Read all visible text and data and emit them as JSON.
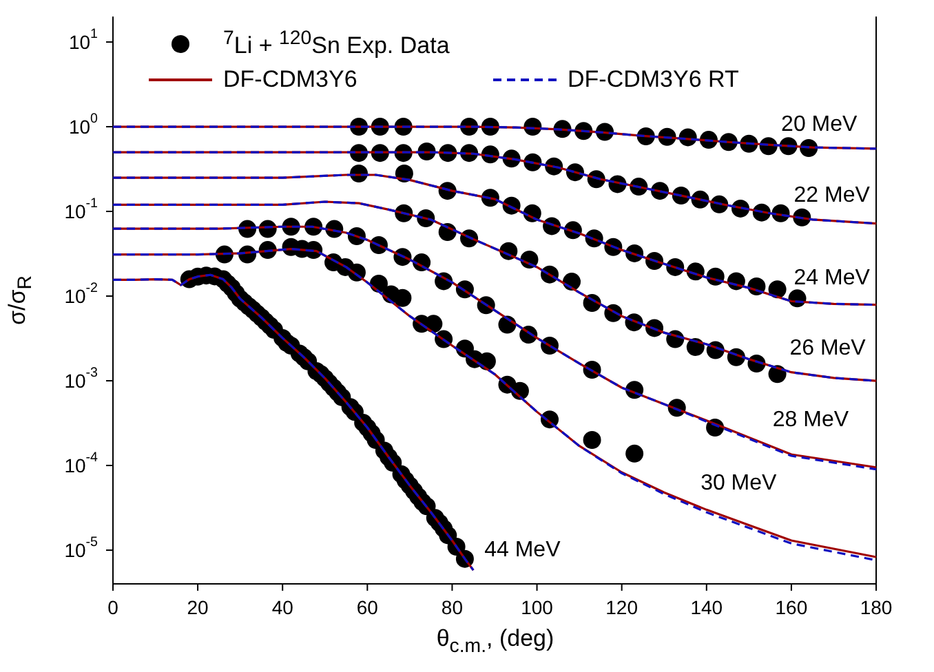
{
  "chart_data": {
    "type": "line",
    "xlabel": "θ$_{c.m.}$, (deg)",
    "ylabel": "σ/σ$_{R}$",
    "xlim": [
      0,
      180
    ],
    "xticks": [
      0,
      20,
      40,
      60,
      80,
      100,
      120,
      140,
      160,
      180
    ],
    "ylim": [
      4e-06,
      20
    ],
    "yticks": [
      {
        "value": 1e-05,
        "label": "10$^{-5}$"
      },
      {
        "value": 0.0001,
        "label": "10$^{-4}$"
      },
      {
        "value": 0.001,
        "label": "10$^{-3}$"
      },
      {
        "value": 0.01,
        "label": "10$^{-2}$"
      },
      {
        "value": 0.1,
        "label": "10$^{-1}$"
      },
      {
        "value": 1,
        "label": "10$^{0}$"
      },
      {
        "value": 10,
        "label": "10$^{1}$"
      }
    ],
    "log": "y",
    "grid": false,
    "legend": "top",
    "series": [
      {
        "name": "$^{7}$Li + $^{120}$Sn Exp. Data",
        "type": "scatter",
        "color": "#000000",
        "marker": "circle",
        "x": [
          58,
          63,
          68.5,
          84,
          89,
          99,
          106,
          111,
          116,
          125.7,
          130.7,
          135.6,
          140.5,
          145.2,
          150,
          154.6,
          159.3,
          164.1,
          58,
          63,
          68.5,
          74,
          79,
          84,
          89,
          94,
          99,
          104,
          109,
          114,
          119,
          124,
          129,
          134,
          138.5,
          143,
          148,
          153,
          157.5,
          162.5,
          58,
          68.7,
          78.9,
          89,
          94,
          98.9,
          103.5,
          108.5,
          113.5,
          118,
          123,
          127.7,
          132.6,
          137.4,
          142.1,
          147,
          151.8,
          156.7,
          161.4,
          68.6,
          73.8,
          78.9,
          84,
          93.3,
          98.2,
          103,
          108.2,
          113,
          118,
          122.9,
          127.7,
          132.6,
          137.4,
          142.1,
          147,
          151.8,
          156.7,
          31.7,
          36.5,
          42,
          47.3,
          52.2,
          57.5,
          62.7,
          68.3,
          72.8,
          78,
          83,
          88,
          93,
          98,
          103,
          113,
          123,
          133,
          142,
          26.3,
          31.7,
          36.5,
          42,
          44.6,
          47.3,
          52,
          54.8,
          57.5,
          62.7,
          65.6,
          68.3,
          72.8,
          75.6,
          78,
          83,
          85.3,
          88.2,
          93,
          96,
          103,
          113,
          123,
          18,
          20,
          22,
          24,
          26,
          27,
          28,
          29,
          30,
          31,
          32,
          33,
          34,
          35,
          36,
          37,
          38,
          40,
          41,
          42,
          44,
          45,
          46,
          48,
          49,
          50,
          51,
          52,
          53,
          54,
          56,
          57,
          59,
          60,
          61,
          62,
          64,
          65,
          66,
          68,
          69,
          70,
          71,
          72,
          73,
          74,
          76,
          77,
          78,
          79,
          81,
          83
        ],
        "values": [
          1,
          1,
          1,
          1,
          1,
          1,
          0.94,
          0.89,
          0.87,
          0.77,
          0.76,
          0.75,
          0.7,
          0.66,
          0.63,
          0.59,
          0.59,
          0.56,
          0.49,
          0.49,
          0.49,
          0.51,
          0.49,
          0.49,
          0.47,
          0.42,
          0.38,
          0.34,
          0.29,
          0.24,
          0.21,
          0.196,
          0.175,
          0.154,
          0.138,
          0.121,
          0.108,
          0.097,
          0.095,
          0.085,
          0.28,
          0.28,
          0.175,
          0.145,
          0.117,
          0.095,
          0.067,
          0.06,
          0.048,
          0.038,
          0.032,
          0.026,
          0.022,
          0.0195,
          0.017,
          0.015,
          0.013,
          0.012,
          0.0094,
          0.095,
          0.083,
          0.057,
          0.048,
          0.034,
          0.027,
          0.018,
          0.0148,
          0.0083,
          0.0063,
          0.0049,
          0.0042,
          0.0031,
          0.0025,
          0.0023,
          0.0019,
          0.0016,
          0.0012,
          0.062,
          0.062,
          0.066,
          0.066,
          0.062,
          0.051,
          0.04,
          0.029,
          0.025,
          0.015,
          0.012,
          0.0078,
          0.0046,
          0.0035,
          0.0026,
          0.00135,
          0.00078,
          0.00048,
          0.00028,
          0.031,
          0.031,
          0.035,
          0.038,
          0.036,
          0.035,
          0.025,
          0.022,
          0.019,
          0.014,
          0.0105,
          0.0095,
          0.0047,
          0.0047,
          0.0031,
          0.0024,
          0.0018,
          0.0017,
          0.0009,
          0.00076,
          0.00035,
          0.0002,
          0.000138,
          0.0158,
          0.017,
          0.0175,
          0.0171,
          0.0158,
          0.0141,
          0.0126,
          0.0108,
          0.0093,
          0.0084,
          0.0076,
          0.0069,
          0.0062,
          0.0056,
          0.005,
          0.0045,
          0.004,
          0.0032,
          0.0028,
          0.0026,
          0.0021,
          0.0019,
          0.0017,
          0.0013,
          0.0012,
          0.00107,
          0.00094,
          0.00083,
          0.00073,
          0.00064,
          0.00049,
          0.00043,
          0.00032,
          0.00028,
          0.00024,
          0.0002,
          0.00015,
          0.000126,
          0.000108,
          7.9e-05,
          6.7e-05,
          5.8e-05,
          5e-05,
          4.3e-05,
          3.7e-05,
          3.3e-05,
          2.4e-05,
          2.1e-05,
          1.8e-05,
          1.5e-05,
          1.1e-05,
          7.9e-06
        ]
      },
      {
        "name": "DF-CDM3Y6",
        "color": "#a00000",
        "line_style": "solid",
        "marker": "none",
        "x": [
          0,
          60,
          70,
          85,
          95,
          105,
          115,
          125,
          135,
          145,
          155,
          165,
          180
        ],
        "values": [
          1,
          1,
          1,
          1,
          0.98,
          0.93,
          0.86,
          0.78,
          0.72,
          0.66,
          0.61,
          0.57,
          0.55
        ]
      },
      {
        "color": "#a00000",
        "line_style": "solid",
        "marker": "none",
        "x": [
          0,
          60,
          75,
          85,
          95,
          105,
          115,
          125,
          135,
          145,
          155,
          165,
          180
        ],
        "values": [
          0.5,
          0.5,
          0.5,
          0.48,
          0.41,
          0.33,
          0.24,
          0.19,
          0.15,
          0.118,
          0.095,
          0.08,
          0.072
        ]
      },
      {
        "color": "#a00000",
        "line_style": "solid",
        "marker": "none",
        "x": [
          0,
          40,
          55,
          62,
          70,
          80,
          90,
          100,
          110,
          120,
          130,
          140,
          150,
          160,
          170,
          180
        ],
        "values": [
          0.25,
          0.25,
          0.27,
          0.27,
          0.235,
          0.175,
          0.14,
          0.08,
          0.055,
          0.035,
          0.024,
          0.0166,
          0.0125,
          0.0087,
          0.0081,
          0.0079
        ]
      },
      {
        "color": "#a00000",
        "line_style": "solid",
        "marker": "none",
        "x": [
          0,
          40,
          50,
          58,
          65,
          75,
          85,
          100,
          110,
          120,
          130,
          140,
          150,
          160,
          170,
          180
        ],
        "values": [
          0.12,
          0.12,
          0.13,
          0.125,
          0.105,
          0.08,
          0.047,
          0.022,
          0.011,
          0.0058,
          0.0037,
          0.0027,
          0.0018,
          0.00126,
          0.00108,
          0.001
        ]
      },
      {
        "color": "#a00000",
        "line_style": "solid",
        "marker": "none",
        "x": [
          0,
          25,
          40,
          47,
          55,
          60,
          70,
          80,
          90,
          100,
          110,
          120,
          130,
          140,
          160,
          180
        ],
        "values": [
          0.0625,
          0.0625,
          0.066,
          0.066,
          0.056,
          0.046,
          0.027,
          0.0145,
          0.0068,
          0.0032,
          0.0016,
          0.00083,
          0.00053,
          0.00034,
          0.000135,
          9.5e-05
        ]
      },
      {
        "color": "#a00000",
        "line_style": "solid",
        "marker": "none",
        "x": [
          0,
          20,
          30,
          42,
          48,
          55,
          60,
          70,
          80,
          90,
          100,
          110,
          120,
          130,
          140,
          160,
          180
        ],
        "values": [
          0.031,
          0.031,
          0.032,
          0.036,
          0.034,
          0.022,
          0.0145,
          0.0058,
          0.0026,
          0.0012,
          0.00043,
          0.00017,
          8.3e-05,
          4.8e-05,
          3e-05,
          1.3e-05,
          8.3e-06
        ]
      },
      {
        "color": "#a00000",
        "line_style": "solid",
        "marker": "none",
        "x": [
          0,
          5,
          10,
          14,
          16,
          18,
          20,
          23,
          26,
          28,
          30,
          35,
          40,
          45,
          50,
          55,
          60,
          65,
          70,
          75,
          80,
          83,
          85
        ],
        "values": [
          0.0156,
          0.0156,
          0.0158,
          0.0156,
          0.0135,
          0.0158,
          0.017,
          0.0178,
          0.0158,
          0.0126,
          0.0093,
          0.0056,
          0.0032,
          0.0019,
          0.00107,
          0.00056,
          0.00028,
          0.000126,
          5.8e-05,
          2.8e-05,
          1.3e-05,
          7.9e-06,
          5.8e-06
        ]
      },
      {
        "name": "DF-CDM3Y6 RT",
        "color": "#1010c0",
        "line_style": "dashed",
        "marker": "none",
        "x": [
          0,
          60,
          70,
          85,
          95,
          105,
          115,
          125,
          135,
          145,
          155,
          165,
          180
        ],
        "values": [
          1,
          1,
          1,
          1,
          0.98,
          0.93,
          0.86,
          0.78,
          0.72,
          0.66,
          0.61,
          0.57,
          0.55
        ]
      },
      {
        "color": "#1010c0",
        "line_style": "dashed",
        "marker": "none",
        "x": [
          0,
          60,
          75,
          85,
          95,
          105,
          115,
          125,
          135,
          145,
          155,
          165,
          180
        ],
        "values": [
          0.5,
          0.5,
          0.5,
          0.48,
          0.41,
          0.33,
          0.24,
          0.19,
          0.15,
          0.118,
          0.095,
          0.08,
          0.072
        ]
      },
      {
        "color": "#1010c0",
        "line_style": "dashed",
        "marker": "none",
        "x": [
          0,
          40,
          55,
          62,
          70,
          80,
          90,
          100,
          110,
          120,
          130,
          140,
          150,
          160,
          170,
          180
        ],
        "values": [
          0.25,
          0.25,
          0.27,
          0.27,
          0.235,
          0.175,
          0.14,
          0.08,
          0.055,
          0.035,
          0.024,
          0.0166,
          0.0125,
          0.0087,
          0.0081,
          0.0079
        ]
      },
      {
        "color": "#1010c0",
        "line_style": "dashed",
        "marker": "none",
        "x": [
          0,
          40,
          50,
          58,
          65,
          75,
          85,
          100,
          110,
          120,
          130,
          140,
          150,
          160,
          170,
          180
        ],
        "values": [
          0.12,
          0.12,
          0.13,
          0.125,
          0.105,
          0.08,
          0.047,
          0.022,
          0.011,
          0.0058,
          0.0037,
          0.0027,
          0.0018,
          0.00126,
          0.00108,
          0.001
        ]
      },
      {
        "color": "#1010c0",
        "line_style": "dashed",
        "marker": "none",
        "x": [
          0,
          25,
          40,
          47,
          55,
          60,
          70,
          80,
          90,
          100,
          110,
          120,
          130,
          140,
          160,
          180
        ],
        "values": [
          0.0625,
          0.0625,
          0.066,
          0.066,
          0.056,
          0.046,
          0.027,
          0.0145,
          0.0068,
          0.0032,
          0.0016,
          0.00083,
          0.00053,
          0.00033,
          0.00013,
          9e-05
        ]
      },
      {
        "color": "#1010c0",
        "line_style": "dashed",
        "marker": "none",
        "x": [
          0,
          20,
          30,
          42,
          48,
          55,
          60,
          70,
          80,
          90,
          100,
          110,
          120,
          130,
          140,
          160,
          180
        ],
        "values": [
          0.031,
          0.031,
          0.032,
          0.036,
          0.034,
          0.022,
          0.0145,
          0.0058,
          0.0026,
          0.0012,
          0.00043,
          0.00017,
          8.1e-05,
          4.6e-05,
          2.8e-05,
          1.2e-05,
          7.6e-06
        ]
      },
      {
        "color": "#1010c0",
        "line_style": "dashed",
        "marker": "none",
        "x": [
          0,
          5,
          10,
          14,
          16,
          18,
          20,
          23,
          26,
          28,
          30,
          35,
          40,
          45,
          50,
          55,
          60,
          65,
          70,
          75,
          80,
          83,
          85
        ],
        "values": [
          0.0156,
          0.0156,
          0.0158,
          0.0156,
          0.0135,
          0.0158,
          0.017,
          0.0178,
          0.0158,
          0.0126,
          0.0093,
          0.0056,
          0.0032,
          0.0019,
          0.00107,
          0.00056,
          0.00028,
          0.000126,
          5.8e-05,
          2.8e-05,
          1.3e-05,
          7.9e-06,
          5.8e-06
        ]
      }
    ],
    "annotations": [
      {
        "text": "20 MeV",
        "x": 155,
        "y": 0.61
      },
      {
        "text": "22 MeV",
        "x": 158,
        "y": 0.09
      },
      {
        "text": "24 MeV",
        "x": 158,
        "y": 0.0094
      },
      {
        "text": "26 MeV",
        "x": 157,
        "y": 0.0014
      },
      {
        "text": "28 MeV",
        "x": 153,
        "y": 0.0002
      },
      {
        "text": "30 MeV",
        "x": 136,
        "y": 3.6e-05
      },
      {
        "text": "44 MeV",
        "x": 85,
        "y": 5.8e-06
      }
    ]
  }
}
